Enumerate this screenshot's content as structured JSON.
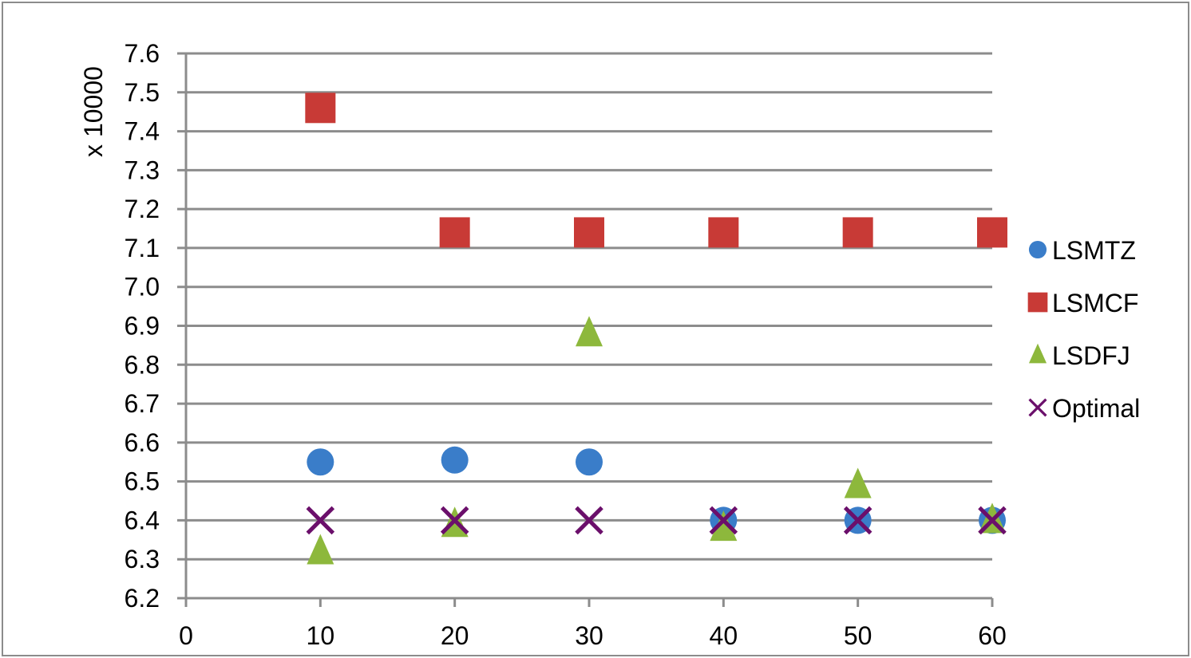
{
  "chart_data": {
    "type": "scatter",
    "title": "",
    "xlabel": "",
    "ylabel": "x 10000",
    "xlim": [
      0,
      60
    ],
    "ylim": [
      6.2,
      7.6
    ],
    "x_ticks": [
      "0",
      "10",
      "20",
      "30",
      "40",
      "50",
      "60"
    ],
    "y_ticks": [
      "6.2",
      "6.3",
      "6.4",
      "6.5",
      "6.6",
      "6.7",
      "6.8",
      "6.9",
      "7.0",
      "7.1",
      "7.2",
      "7.3",
      "7.4",
      "7.5",
      "7.6"
    ],
    "grid": "horizontal",
    "legend_position": "right",
    "x": [
      10,
      20,
      30,
      40,
      50,
      60
    ],
    "series": [
      {
        "name": "LSMTZ",
        "marker": "circle",
        "color": "#3a7dc9",
        "values": [
          6.55,
          6.555,
          6.55,
          6.4,
          6.4,
          6.4
        ]
      },
      {
        "name": "LSMCF",
        "marker": "square",
        "color": "#c83a36",
        "values": [
          7.46,
          7.14,
          7.14,
          7.14,
          7.14,
          7.14
        ]
      },
      {
        "name": "LSDFJ",
        "marker": "triangle",
        "color": "#8db83c",
        "values": [
          6.32,
          6.39,
          6.88,
          6.38,
          6.49,
          6.4
        ]
      },
      {
        "name": "Optimal",
        "marker": "x",
        "color": "#6b0f6b",
        "values": [
          6.4,
          6.4,
          6.4,
          6.4,
          6.4,
          6.4
        ]
      }
    ]
  }
}
